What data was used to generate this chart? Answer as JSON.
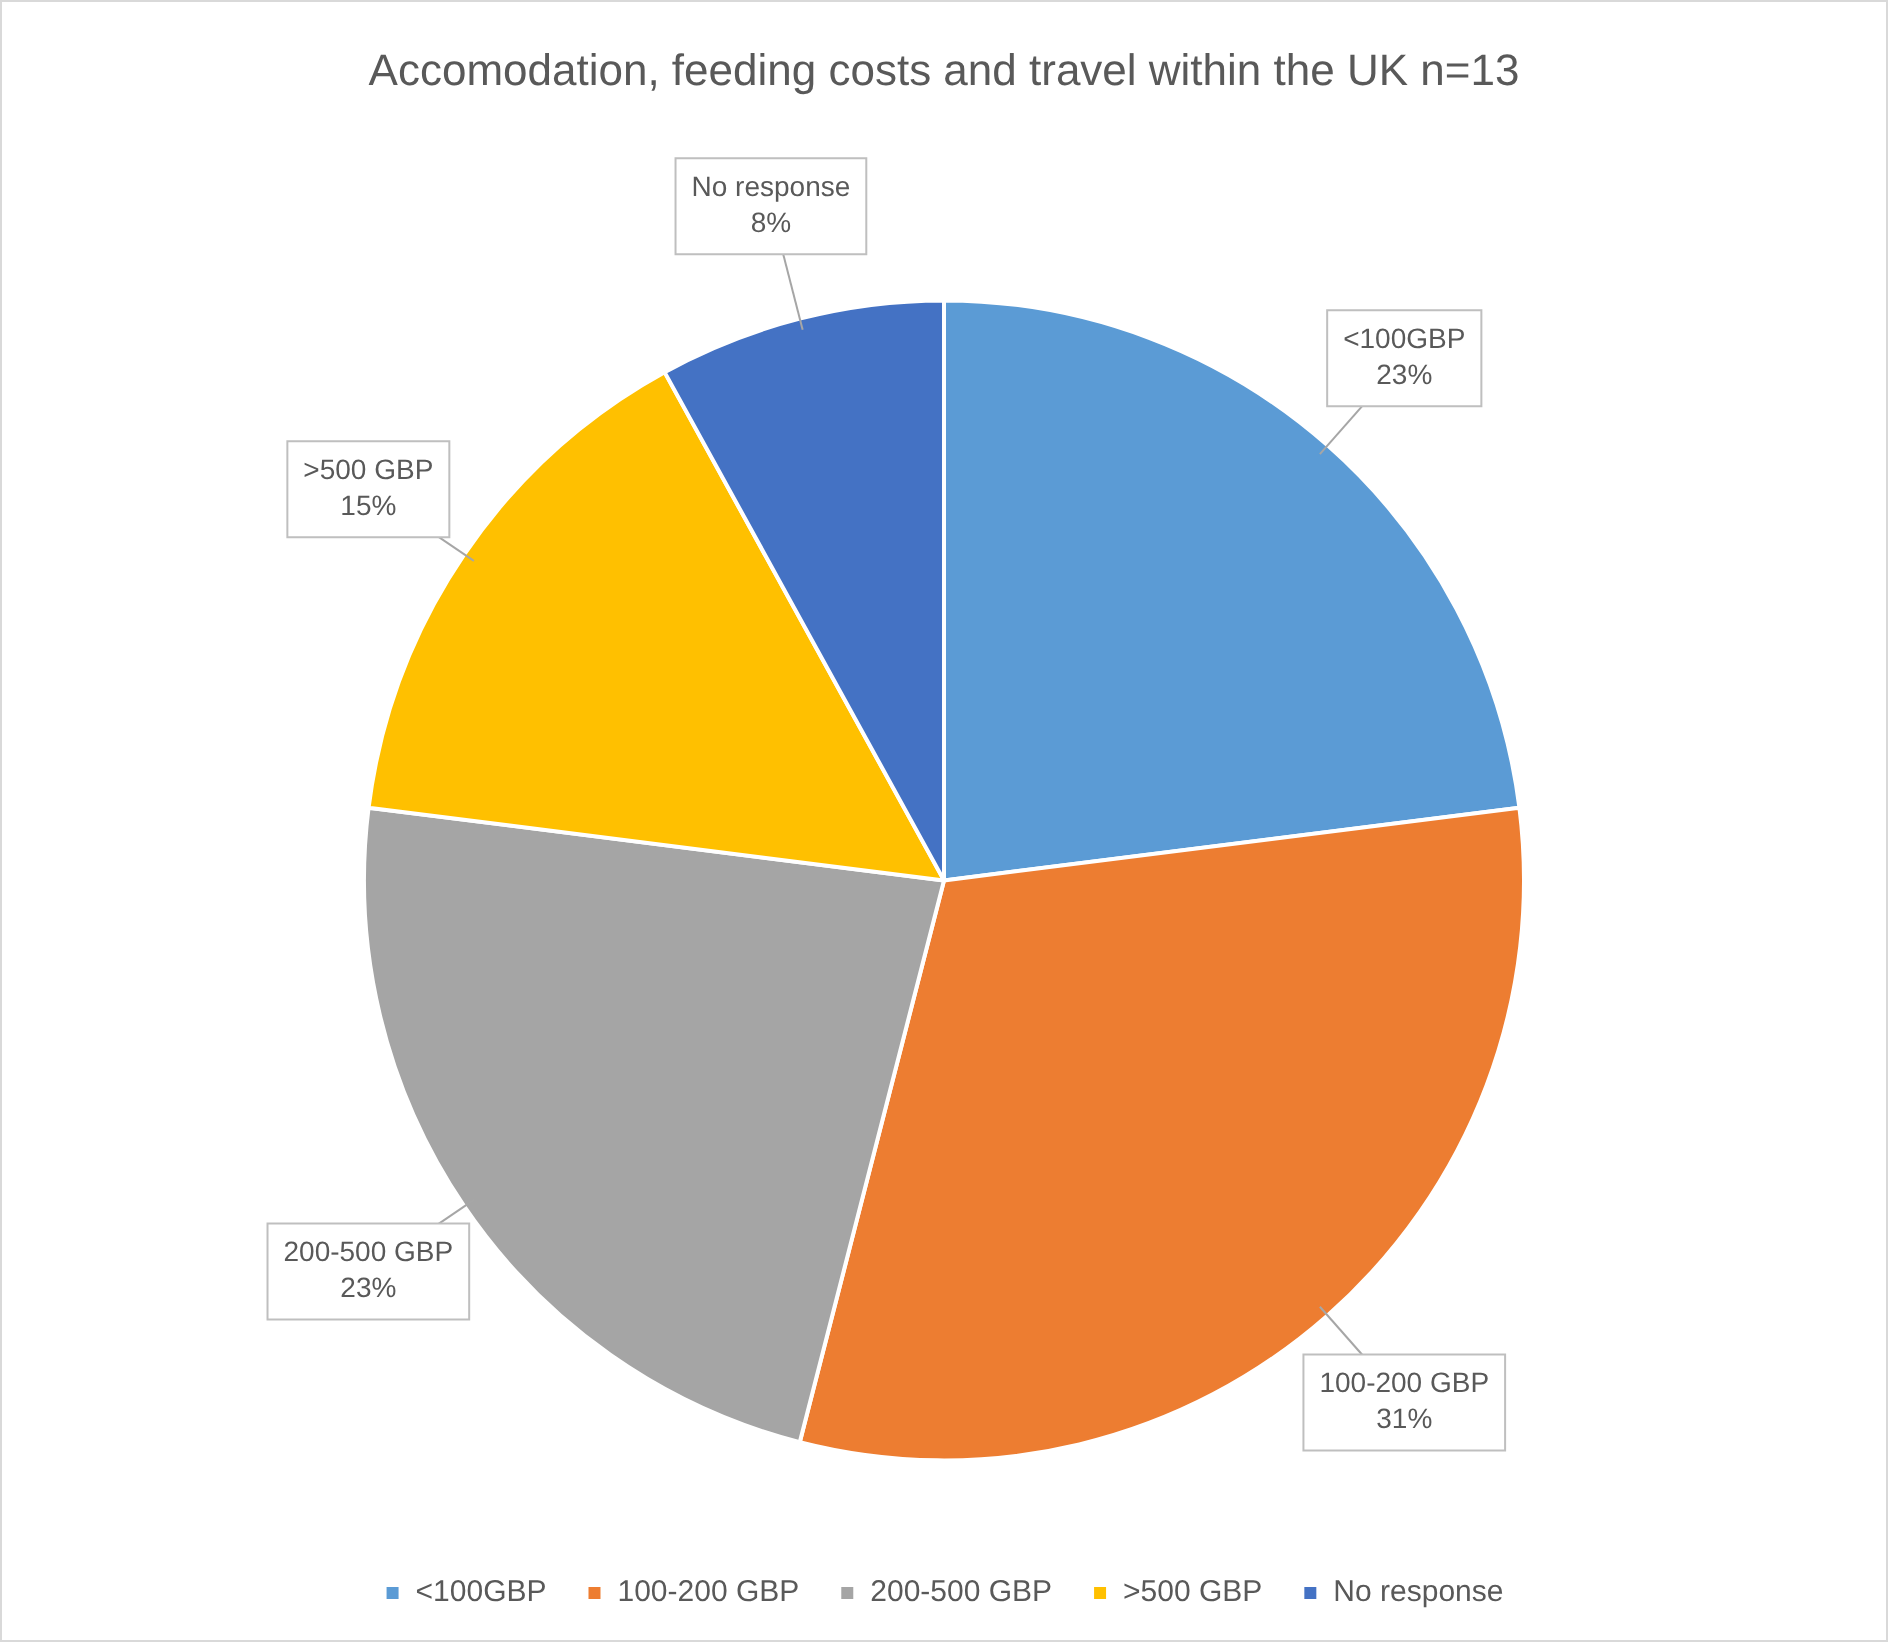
{
  "chart_data": {
    "type": "pie",
    "title": "Accomodation, feeding costs and travel within the UK n=13",
    "categories": [
      "<100GBP",
      "100-200 GBP",
      "200-500 GBP",
      ">500 GBP",
      "No response"
    ],
    "values": [
      23,
      31,
      23,
      15,
      8
    ],
    "value_labels": [
      "23%",
      "31%",
      "23%",
      "15%",
      "8%"
    ],
    "colors": [
      "#5b9bd5",
      "#ed7d31",
      "#a5a5a5",
      "#ffc000",
      "#4472c4"
    ],
    "legend": "bottom"
  }
}
